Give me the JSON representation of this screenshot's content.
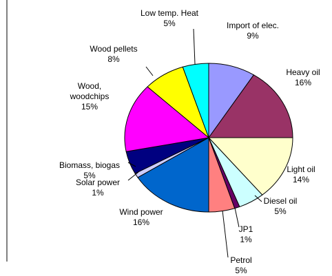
{
  "chart_data": {
    "type": "pie",
    "categories": [
      "Import of elec.",
      "Heavy oil",
      "Light oil",
      "Diesel oil",
      "JP1",
      "Petrol",
      "Wind power",
      "Solar power",
      "Biomass, biogas",
      "Wood, woodchips",
      "Wood pellets",
      "Low temp. Heat"
    ],
    "values": [
      9,
      16,
      14,
      5,
      1,
      5,
      16,
      1,
      5,
      15,
      8,
      5
    ],
    "value_labels": [
      "9%",
      "16%",
      "14%",
      "5%",
      "1%",
      "5%",
      "16%",
      "1%",
      "5%",
      "15%",
      "8%",
      "5%"
    ],
    "colors": [
      "#9999ff",
      "#993366",
      "#ffffcc",
      "#ccffff",
      "#660066",
      "#ff8080",
      "#0066cc",
      "#ccccff",
      "#000080",
      "#ff00ff",
      "#ffff00",
      "#00ffff"
    ]
  }
}
